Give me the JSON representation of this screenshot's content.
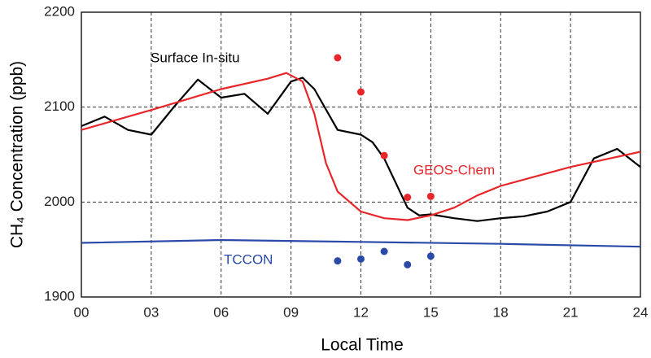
{
  "chart_data": {
    "type": "line",
    "x_label": "Local Time",
    "y_label": "CH₄ Concentration (ppb)",
    "xlim": [
      0,
      24
    ],
    "xticks": [
      {
        "value": 0,
        "label": "00"
      },
      {
        "value": 3,
        "label": "03"
      },
      {
        "value": 6,
        "label": "06"
      },
      {
        "value": 9,
        "label": "09"
      },
      12,
      15,
      18,
      21,
      24
    ],
    "ylim": [
      1900,
      2200
    ],
    "yticks": [
      1900,
      2000,
      2100,
      2200
    ],
    "grid": true,
    "series": [
      {
        "name": "Surface In-situ",
        "type": "line",
        "color": "#000000",
        "x": [
          0,
          1,
          2,
          3,
          4,
          5,
          6,
          7,
          8,
          9,
          9.5,
          10,
          11,
          12,
          12.5,
          13,
          14,
          14.5,
          15,
          16,
          17,
          18,
          19,
          20,
          21,
          22,
          23,
          24
        ],
        "values": [
          2080,
          2090,
          2076,
          2071,
          2101,
          2129,
          2110,
          2114,
          2093,
          2127,
          2131,
          2119,
          2076,
          2071,
          2063,
          2046,
          1994,
          1986,
          1987,
          1983,
          1980,
          1983,
          1985,
          1990,
          2000,
          2046,
          2056,
          2037
        ]
      },
      {
        "name": "GEOS-Chem",
        "type": "line",
        "color": "#e8262a",
        "x": [
          0,
          3,
          6,
          8,
          8.8,
          9.5,
          10,
          10.5,
          11,
          12,
          13,
          14,
          15,
          16,
          17,
          18,
          21,
          24
        ],
        "values": [
          2076,
          2097,
          2119,
          2130,
          2136,
          2127,
          2093,
          2041,
          2011,
          1990,
          1983,
          1981,
          1986,
          1994,
          2007,
          2017,
          2037,
          2053
        ]
      },
      {
        "name": "TCCON",
        "type": "line",
        "color": "#2a4aa8",
        "x": [
          0,
          6,
          12,
          18,
          24
        ],
        "values": [
          1957,
          1960,
          1958,
          1956,
          1953
        ]
      },
      {
        "type": "scatter",
        "color": "#e8262a",
        "x": [
          11,
          12,
          13,
          14,
          15
        ],
        "values": [
          2152,
          2116,
          2049,
          2005,
          2006
        ]
      },
      {
        "type": "scatter",
        "color": "#2a4aa8",
        "x": [
          11,
          12,
          13,
          14,
          15
        ],
        "values": [
          1938,
          1940,
          1948,
          1934,
          1943
        ]
      }
    ]
  }
}
